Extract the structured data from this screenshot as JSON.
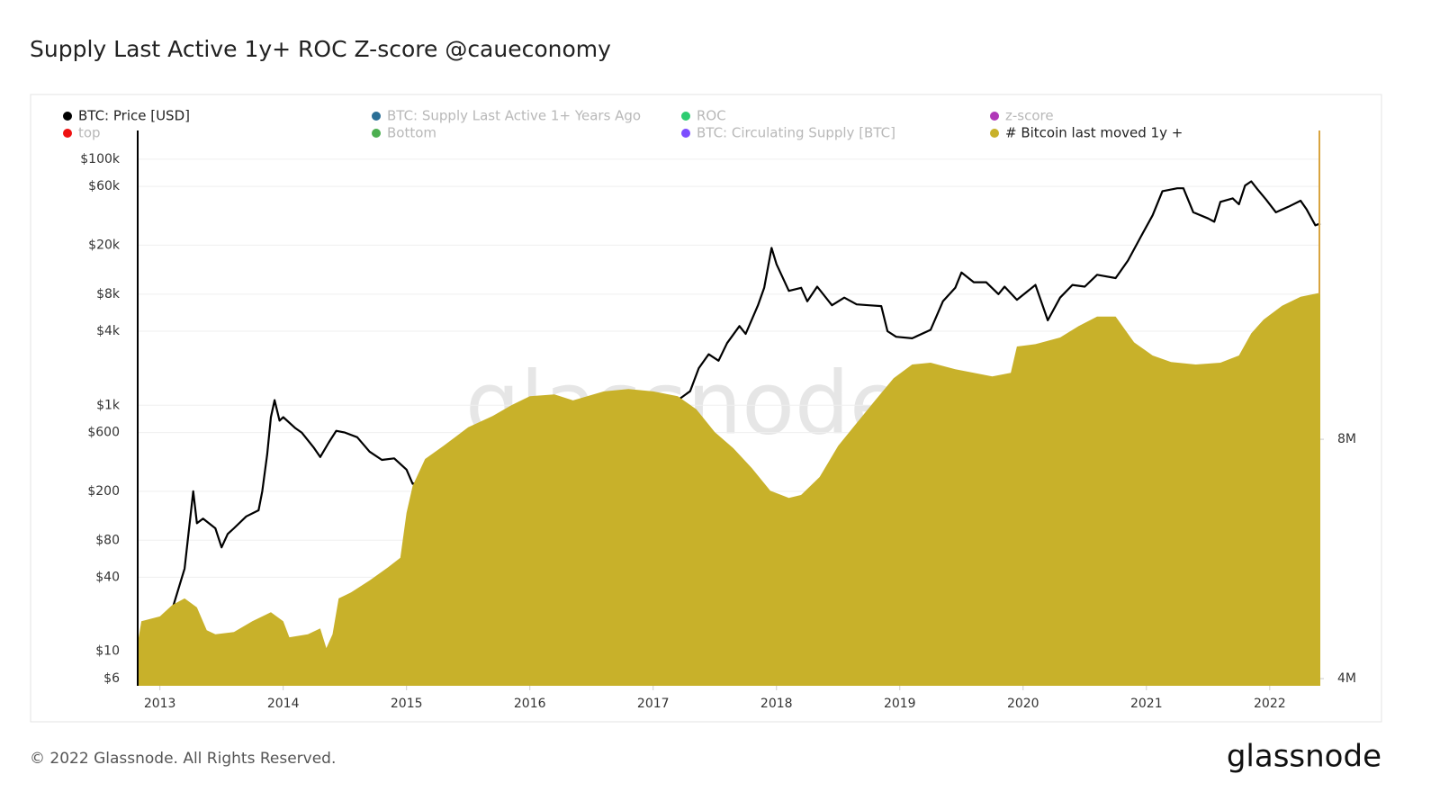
{
  "chart_data": {
    "type": "line",
    "title": "Supply Last Active 1y+ ROC Z-score @caueconomy",
    "watermark": "glassnode",
    "footer": "© 2022 Glassnode. All Rights Reserved.",
    "logo": "glassnode",
    "grid": true,
    "y_scale": "log",
    "xlim": [
      2012.82,
      2022.41
    ],
    "xticks": [
      2013,
      2014,
      2015,
      2016,
      2017,
      2018,
      2019,
      2020,
      2021,
      2022
    ],
    "ylim": [
      5.25,
      171000
    ],
    "yticks": [
      {
        "value": 6,
        "label": "$6"
      },
      {
        "value": 10,
        "label": "$10"
      },
      {
        "value": 40,
        "label": "$40"
      },
      {
        "value": 80,
        "label": "$80"
      },
      {
        "value": 200,
        "label": "$200"
      },
      {
        "value": 600,
        "label": "$600"
      },
      {
        "value": 1000,
        "label": "$1k"
      },
      {
        "value": 4000,
        "label": "$4k"
      },
      {
        "value": 8000,
        "label": "$8k"
      },
      {
        "value": 20000,
        "label": "$20k"
      },
      {
        "value": 60000,
        "label": "$60k"
      },
      {
        "value": 100000,
        "label": "$100k"
      }
    ],
    "y2lim": [
      3880000,
      13160000
    ],
    "y2ticks": [
      {
        "value": 4000000,
        "label": "4M"
      },
      {
        "value": 8000000,
        "label": "8M"
      }
    ],
    "series": [
      {
        "name": "BTC: Price [USD]",
        "color": "#000000",
        "type": "line",
        "visible": true,
        "x": [
          2012.82,
          2012.9,
          2013.0,
          2013.1,
          2013.2,
          2013.27,
          2013.3,
          2013.35,
          2013.45,
          2013.5,
          2013.55,
          2013.6,
          2013.7,
          2013.8,
          2013.83,
          2013.87,
          2013.9,
          2013.93,
          2013.97,
          2014.0,
          2014.1,
          2014.15,
          2014.25,
          2014.3,
          2014.37,
          2014.43,
          2014.5,
          2014.6,
          2014.7,
          2014.8,
          2014.9,
          2015.0,
          2015.05,
          2015.2,
          2015.4,
          2015.5,
          2015.7,
          2015.85,
          2015.95,
          2016.2,
          2016.45,
          2016.6,
          2016.8,
          2017.0,
          2017.2,
          2017.3,
          2017.37,
          2017.45,
          2017.53,
          2017.6,
          2017.7,
          2017.75,
          2017.85,
          2017.9,
          2017.96,
          2018.0,
          2018.1,
          2018.2,
          2018.25,
          2018.33,
          2018.45,
          2018.55,
          2018.65,
          2018.75,
          2018.85,
          2018.9,
          2018.97,
          2019.1,
          2019.25,
          2019.35,
          2019.45,
          2019.5,
          2019.6,
          2019.7,
          2019.8,
          2019.85,
          2019.95,
          2020.1,
          2020.2,
          2020.3,
          2020.4,
          2020.5,
          2020.6,
          2020.75,
          2020.85,
          2020.95,
          2021.05,
          2021.13,
          2021.25,
          2021.3,
          2021.38,
          2021.5,
          2021.55,
          2021.6,
          2021.7,
          2021.75,
          2021.8,
          2021.85,
          2021.9,
          2021.97,
          2022.05,
          2022.15,
          2022.25,
          2022.3,
          2022.37,
          2022.41
        ],
        "values": [
          11,
          12.5,
          13.5,
          22,
          47,
          200,
          110,
          120,
          100,
          70,
          90,
          100,
          125,
          140,
          200,
          400,
          800,
          1100,
          750,
          800,
          650,
          600,
          450,
          380,
          500,
          620,
          600,
          550,
          420,
          360,
          370,
          300,
          230,
          250,
          240,
          270,
          230,
          360,
          430,
          420,
          650,
          600,
          700,
          1000,
          1100,
          1300,
          2000,
          2600,
          2300,
          3200,
          4400,
          3800,
          6500,
          9000,
          19000,
          14000,
          8500,
          9000,
          7000,
          9200,
          6500,
          7500,
          6600,
          6500,
          6400,
          4000,
          3600,
          3500,
          4100,
          7000,
          9000,
          12000,
          10000,
          10000,
          8000,
          9200,
          7200,
          9500,
          4900,
          7500,
          9500,
          9200,
          11500,
          10800,
          15000,
          23000,
          35000,
          55000,
          58000,
          58000,
          37000,
          33000,
          31000,
          45000,
          48000,
          43000,
          61000,
          66000,
          57000,
          47000,
          37000,
          41000,
          46000,
          39000,
          29000,
          30000
        ]
      },
      {
        "name": "BTC: Supply Last Active 1+ Years Ago",
        "color": "#2b6f96",
        "visible": false
      },
      {
        "name": "ROC",
        "color": "#2ecc71",
        "visible": false
      },
      {
        "name": "z-score",
        "color": "#b038b8",
        "visible": false
      },
      {
        "name": "top",
        "color": "#ee1111",
        "visible": false
      },
      {
        "name": "Bottom",
        "color": "#4caf50",
        "visible": false
      },
      {
        "name": "BTC: Circulating Supply [BTC]",
        "color": "#7c4dff",
        "visible": false
      },
      {
        "name": "# Bitcoin last moved 1y +",
        "color": "#c8b12a",
        "type": "area",
        "axis": "y2",
        "visible": true,
        "x": [
          2012.82,
          2012.85,
          2013.0,
          2013.1,
          2013.2,
          2013.3,
          2013.38,
          2013.45,
          2013.6,
          2013.75,
          2013.9,
          2014.0,
          2014.05,
          2014.2,
          2014.3,
          2014.35,
          2014.4,
          2014.45,
          2014.55,
          2014.7,
          2014.85,
          2014.95,
          2015.0,
          2015.05,
          2015.15,
          2015.3,
          2015.5,
          2015.7,
          2015.85,
          2016.0,
          2016.2,
          2016.35,
          2016.6,
          2016.8,
          2017.0,
          2017.2,
          2017.35,
          2017.5,
          2017.65,
          2017.8,
          2017.95,
          2018.1,
          2018.2,
          2018.35,
          2018.5,
          2018.65,
          2018.8,
          2018.95,
          2019.1,
          2019.25,
          2019.45,
          2019.6,
          2019.75,
          2019.9,
          2019.95,
          2020.1,
          2020.3,
          2020.45,
          2020.6,
          2020.75,
          2020.9,
          2021.05,
          2021.2,
          2021.4,
          2021.6,
          2021.75,
          2021.85,
          2021.95,
          2022.1,
          2022.25,
          2022.41
        ],
        "values": [
          4590000,
          4960000,
          5040000,
          5230000,
          5340000,
          5190000,
          4810000,
          4740000,
          4780000,
          4960000,
          5110000,
          4960000,
          4690000,
          4740000,
          4840000,
          4510000,
          4740000,
          5340000,
          5440000,
          5640000,
          5860000,
          6020000,
          6770000,
          7220000,
          7670000,
          7890000,
          8200000,
          8390000,
          8570000,
          8720000,
          8750000,
          8650000,
          8800000,
          8840000,
          8800000,
          8720000,
          8500000,
          8120000,
          7850000,
          7520000,
          7140000,
          7020000,
          7070000,
          7370000,
          7890000,
          8270000,
          8650000,
          9020000,
          9250000,
          9280000,
          9170000,
          9110000,
          9050000,
          9110000,
          9550000,
          9590000,
          9700000,
          9890000,
          10050000,
          10050000,
          9620000,
          9400000,
          9290000,
          9250000,
          9280000,
          9400000,
          9770000,
          10000000,
          10230000,
          10380000,
          10450000
        ]
      }
    ]
  }
}
